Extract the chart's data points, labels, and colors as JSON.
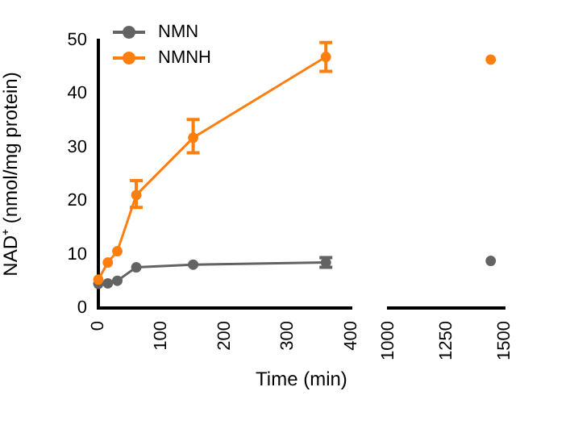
{
  "chart_data": [
    {
      "type": "line",
      "ylabel": "NAD⁺ (nmol/mg protein)",
      "xlabel": "Time (min)",
      "xlim": [
        0,
        400
      ],
      "xticks": [
        0,
        100,
        200,
        300,
        400
      ],
      "ylim": [
        0,
        50
      ],
      "yticks": [
        0,
        10,
        20,
        30,
        40,
        50
      ],
      "grid": false,
      "legend": "top left",
      "marker": "circle",
      "line_style": "solid",
      "series": [
        {
          "name": "NMN",
          "color": "#636363",
          "x": [
            0,
            15,
            30,
            60,
            150,
            360
          ],
          "values": [
            4.5,
            4.6,
            5.1,
            7.6,
            8.1,
            8.5
          ],
          "errors": [
            null,
            null,
            null,
            null,
            null,
            0.9
          ]
        },
        {
          "name": "NMNH",
          "color": "#ff7f0e",
          "x": [
            0,
            15,
            30,
            60,
            150,
            360
          ],
          "values": [
            5.3,
            8.5,
            10.6,
            21.1,
            31.8,
            46.9
          ],
          "errors": [
            null,
            null,
            null,
            [
              18.8,
              23.8
            ],
            [
              29,
              35.2
            ],
            [
              44.2,
              49.6
            ]
          ]
        }
      ]
    },
    {
      "type": "line",
      "xlim": [
        1000,
        1500
      ],
      "xticks": [
        1000,
        1250,
        1500
      ],
      "ylim": [
        0,
        50
      ],
      "grid": false,
      "tick_labels": "x",
      "marker": "circle",
      "line_style": "solid",
      "series": [
        {
          "color": "#636363",
          "x": [
            1440
          ],
          "values": [
            8.8
          ]
        },
        {
          "color": "#ff7f0e",
          "x": [
            1440
          ],
          "values": [
            46.4
          ]
        }
      ]
    }
  ]
}
